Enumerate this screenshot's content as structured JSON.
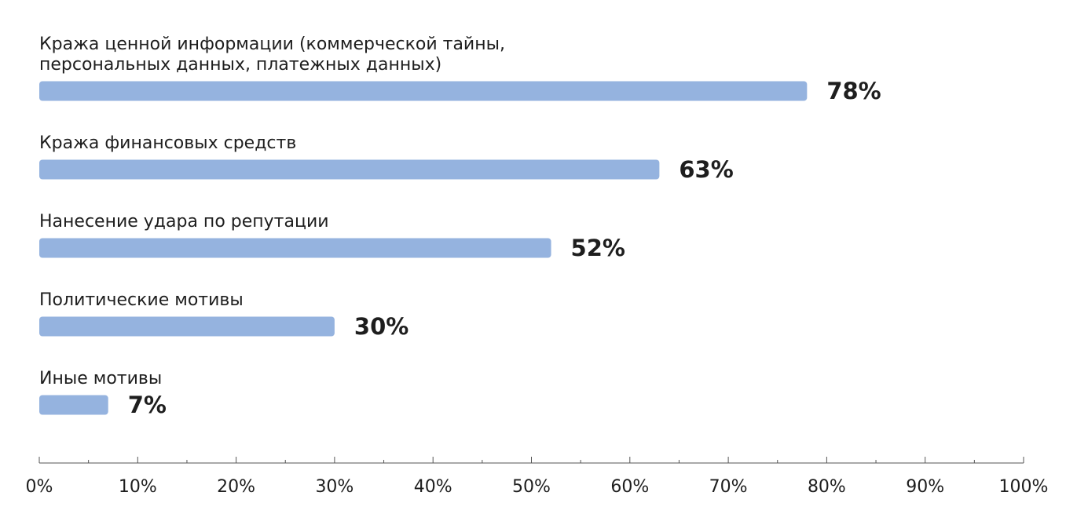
{
  "chart_data": {
    "type": "hbar",
    "categories": [
      "Кража ценной информации (коммерческой тайны, персональных данных, платежных данных)",
      "Кража финансовых средств",
      "Нанесение удара по репутации",
      "Политические мотивы",
      "Иные мотивы"
    ],
    "values": [
      78,
      63,
      52,
      30,
      7
    ],
    "value_labels": [
      "78%",
      "63%",
      "52%",
      "30%",
      "7%"
    ],
    "color": "#95b3df",
    "xlim": [
      0,
      100
    ],
    "xticks": [
      {
        "value": 0,
        "label": "0%"
      },
      {
        "value": 10,
        "label": "10%"
      },
      {
        "value": 20,
        "label": "20%"
      },
      {
        "value": 30,
        "label": "30%"
      },
      {
        "value": 40,
        "label": "40%"
      },
      {
        "value": 50,
        "label": "50%"
      },
      {
        "value": 60,
        "label": "60%"
      },
      {
        "value": 70,
        "label": "70%"
      },
      {
        "value": 80,
        "label": "80%"
      },
      {
        "value": 90,
        "label": "90%"
      },
      {
        "value": 100,
        "label": "100%"
      }
    ],
    "xminorticks": [
      5,
      15,
      25,
      35,
      45,
      55,
      65,
      75,
      85,
      95
    ]
  }
}
